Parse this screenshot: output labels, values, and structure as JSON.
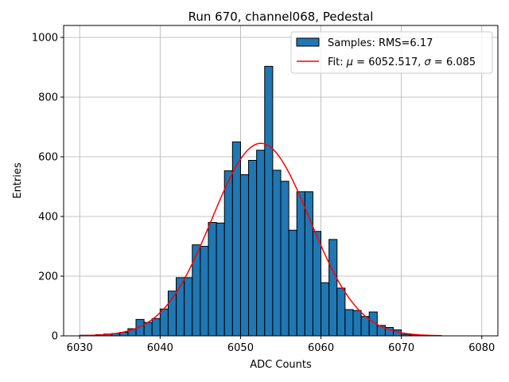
{
  "chart_data": {
    "type": "bar",
    "title": "Run 670, channel068, Pedestal",
    "xlabel": "ADC Counts",
    "ylabel": "Entries",
    "xlim": [
      6028,
      6082
    ],
    "ylim": [
      0,
      1040
    ],
    "xticks": [
      6030,
      6040,
      6050,
      6060,
      6070,
      6080
    ],
    "yticks": [
      0,
      200,
      400,
      600,
      800,
      1000
    ],
    "grid": true,
    "legend_position": "top-right",
    "colors": {
      "bars": "#1f77b4",
      "bar_edge": "#000000",
      "fit": "#ff0000"
    },
    "histogram": {
      "label": "Samples: RMS=6.17",
      "bin_edges": [
        6030,
        6031,
        6032,
        6033,
        6034,
        6035,
        6036,
        6037,
        6038,
        6039,
        6040,
        6041,
        6042,
        6043,
        6044,
        6045,
        6046,
        6047,
        6048,
        6049,
        6050,
        6051,
        6052,
        6053,
        6054,
        6055,
        6056,
        6057,
        6058,
        6059,
        6060,
        6061,
        6062,
        6063,
        6064,
        6065,
        6066,
        6067,
        6068,
        6069,
        6070,
        6071,
        6072,
        6073,
        6074,
        6075
      ],
      "counts": [
        2,
        2,
        4,
        6,
        8,
        12,
        24,
        55,
        45,
        58,
        90,
        150,
        195,
        195,
        305,
        300,
        380,
        378,
        553,
        650,
        540,
        588,
        622,
        903,
        555,
        518,
        354,
        483,
        483,
        350,
        178,
        323,
        160,
        88,
        85,
        65,
        80,
        35,
        28,
        20,
        5,
        3,
        2,
        1,
        1
      ]
    },
    "fit": {
      "label_prefix": "Fit: ",
      "mu_symbol": "μ",
      "mu_value": "6052.517",
      "sigma_symbol": "σ",
      "sigma_value": "6.085",
      "mu": 6052.517,
      "sigma": 6.085,
      "peak": 645,
      "x_range": [
        6030,
        6075
      ]
    }
  }
}
